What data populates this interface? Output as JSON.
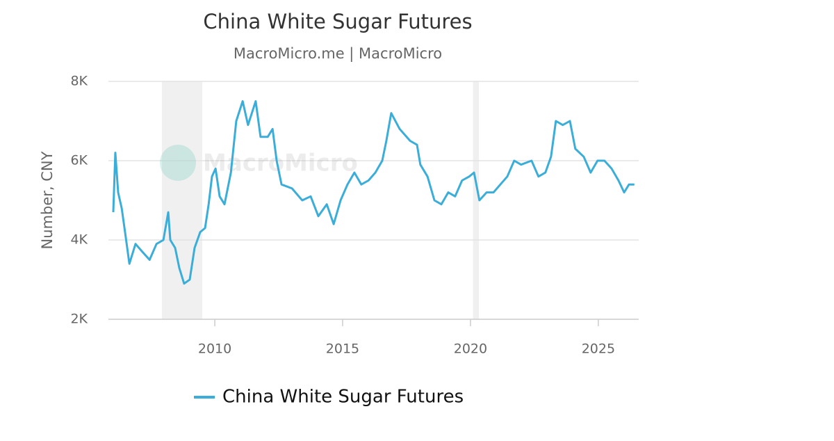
{
  "chart_data": {
    "type": "line",
    "title": "China White Sugar Futures",
    "subtitle": "MacroMicro.me | MacroMicro",
    "watermark": "MacroMicro",
    "y_label": "Number, CNY",
    "xlim": [
      2005.84,
      2026.58
    ],
    "xticks": [
      2010,
      2015,
      2020,
      2025
    ],
    "ylim": [
      2000,
      8000
    ],
    "yticks": [
      {
        "value": 2000,
        "label": "2K"
      },
      {
        "value": 4000,
        "label": "4K"
      },
      {
        "value": 6000,
        "label": "6K"
      },
      {
        "value": 8000,
        "label": "8K"
      }
    ],
    "grid": true,
    "legend": "bottom",
    "shaded_ranges": [
      [
        2007.93,
        2009.51
      ],
      [
        2020.1,
        2020.33
      ]
    ],
    "x": [
      2006.03,
      2006.11,
      2006.22,
      2006.36,
      2006.49,
      2006.66,
      2006.9,
      2007.17,
      2007.45,
      2007.72,
      2007.99,
      2008.18,
      2008.26,
      2008.45,
      2008.61,
      2008.8,
      2009.02,
      2009.21,
      2009.43,
      2009.62,
      2009.76,
      2009.89,
      2010.03,
      2010.19,
      2010.38,
      2010.63,
      2010.84,
      2011.09,
      2011.3,
      2011.6,
      2011.79,
      2012.07,
      2012.26,
      2012.42,
      2012.61,
      2013.02,
      2013.42,
      2013.75,
      2014.05,
      2014.38,
      2014.65,
      2014.92,
      2015.19,
      2015.46,
      2015.73,
      2016.01,
      2016.28,
      2016.55,
      2016.71,
      2016.9,
      2017.23,
      2017.64,
      2017.91,
      2018.04,
      2018.32,
      2018.59,
      2018.86,
      2019.13,
      2019.4,
      2019.67,
      2019.95,
      2020.14,
      2020.35,
      2020.63,
      2020.9,
      2021.17,
      2021.44,
      2021.71,
      2021.98,
      2022.39,
      2022.66,
      2022.93,
      2023.15,
      2023.34,
      2023.61,
      2023.89,
      2024.1,
      2024.43,
      2024.7,
      2024.97,
      2025.24,
      2025.52,
      2025.79,
      2026.01,
      2026.2,
      2026.41
    ],
    "series": [
      {
        "name": "China White Sugar Futures",
        "color": "#3badd9",
        "values": [
          4700,
          6200,
          5200,
          4800,
          4200,
          3400,
          3900,
          3700,
          3500,
          3900,
          4000,
          4700,
          4000,
          3800,
          3300,
          2900,
          3000,
          3800,
          4200,
          4300,
          4900,
          5600,
          5800,
          5100,
          4900,
          5700,
          7000,
          7500,
          6900,
          7500,
          6600,
          6600,
          6800,
          6000,
          5400,
          5300,
          5000,
          5100,
          4600,
          4900,
          4400,
          5000,
          5400,
          5700,
          5400,
          5500,
          5700,
          6000,
          6500,
          7200,
          6800,
          6500,
          6400,
          5900,
          5600,
          5000,
          4900,
          5200,
          5100,
          5500,
          5600,
          5700,
          5000,
          5200,
          5200,
          5400,
          5600,
          6000,
          5900,
          6000,
          5600,
          5700,
          6100,
          7000,
          6900,
          7000,
          6300,
          6100,
          5700,
          6000,
          6000,
          5800,
          5500,
          5200,
          5400,
          5400
        ]
      }
    ]
  }
}
